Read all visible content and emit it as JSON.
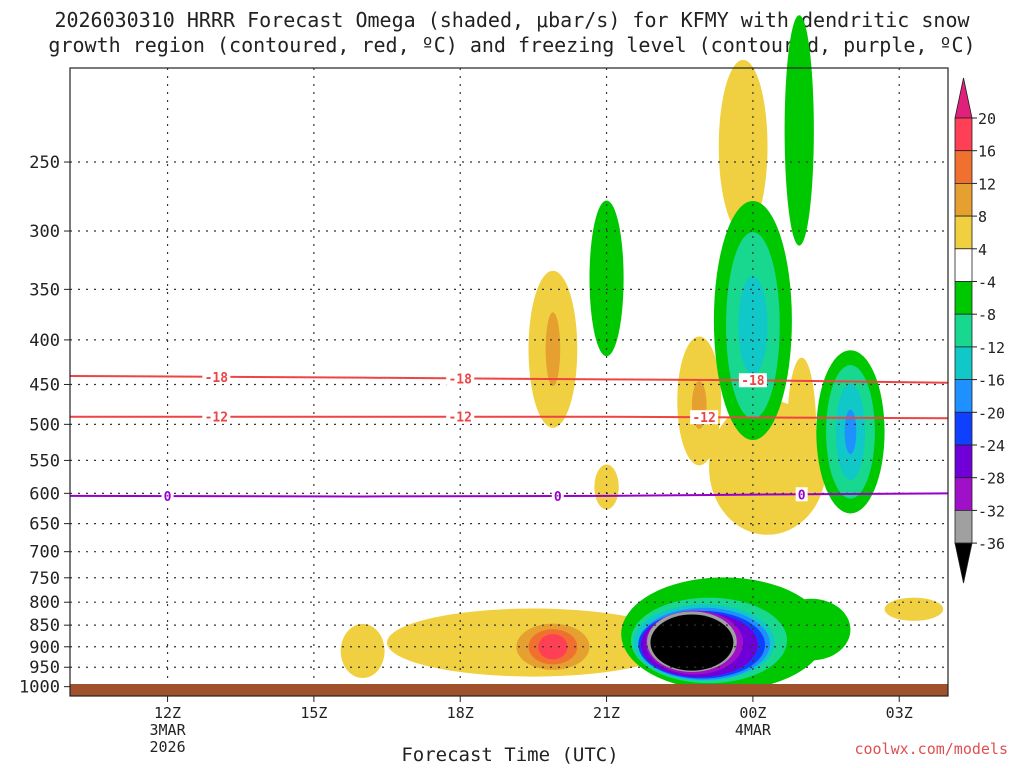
{
  "chart_data": {
    "type": "heatmap",
    "title_line1": "2026030310 HRRR Forecast Omega (shaded, μbar/s) for KFMY with dendritic snow",
    "title_line2": "growth region (contoured, red, ºC) and freezing level (contoured, purple, ºC)",
    "xlabel": "Forecast Time (UTC)",
    "x_range_hours": [
      -2,
      16
    ],
    "x_ticks": [
      {
        "hour": 0,
        "label": "12Z",
        "sub1": "3MAR",
        "sub2": "2026"
      },
      {
        "hour": 3,
        "label": "15Z",
        "sub1": "",
        "sub2": ""
      },
      {
        "hour": 6,
        "label": "18Z",
        "sub1": "",
        "sub2": ""
      },
      {
        "hour": 9,
        "label": "21Z",
        "sub1": "",
        "sub2": ""
      },
      {
        "hour": 12,
        "label": "00Z",
        "sub1": "4MAR",
        "sub2": ""
      },
      {
        "hour": 15,
        "label": "03Z",
        "sub1": "",
        "sub2": ""
      }
    ],
    "y_ticks_hpa": [
      "250",
      "300",
      "350",
      "400",
      "450",
      "500",
      "550",
      "600",
      "650",
      "700",
      "750",
      "800",
      "850",
      "900",
      "950",
      "1000"
    ],
    "y_range_hpa": [
      195,
      1025
    ],
    "colorbar": {
      "labels": [
        "20",
        "16",
        "12",
        "8",
        "4",
        "-4",
        "-8",
        "-12",
        "-16",
        "-20",
        "-24",
        "-28",
        "-32",
        "-36"
      ],
      "colors": [
        "#ff3f55",
        "#f07030",
        "#e6a030",
        "#f0d040",
        "#ffffff",
        "#00c800",
        "#18d890",
        "#10c8c8",
        "#1e90ff",
        "#1040ff",
        "#7000d8",
        "#a010c8",
        "#a0a0a0",
        "#000000"
      ],
      "top_arrow_color": "#e0207a",
      "bottom_arrow_color": "#000000"
    },
    "contours": [
      {
        "name": "dendritic -18",
        "value": -18,
        "label": "-18",
        "color": "#ee4444",
        "points": [
          [
            -2,
            440
          ],
          [
            4,
            442
          ],
          [
            9,
            444
          ],
          [
            12,
            445
          ],
          [
            16,
            448
          ]
        ],
        "label_hours": [
          1,
          6,
          12
        ]
      },
      {
        "name": "dendritic -12",
        "value": -12,
        "label": "-12",
        "color": "#ee4444",
        "points": [
          [
            -2,
            490
          ],
          [
            4,
            490
          ],
          [
            9,
            490
          ],
          [
            12,
            491
          ],
          [
            16,
            492
          ]
        ],
        "label_hours": [
          1,
          6,
          11
        ]
      },
      {
        "name": "freezing level",
        "value": 0,
        "label": "0",
        "color": "#9900cc",
        "points": [
          [
            -2,
            604
          ],
          [
            4,
            605
          ],
          [
            9,
            604
          ],
          [
            12,
            602
          ],
          [
            16,
            600
          ]
        ],
        "label_hours": [
          0,
          8,
          13
        ]
      }
    ],
    "omega_features": [
      {
        "value": 4,
        "hour": 4,
        "hpa": 910,
        "rh": 0.45,
        "rp": 65,
        "color": "#f0d040"
      },
      {
        "value": 4,
        "hour": 7.5,
        "hpa": 890,
        "rh": 3.0,
        "rp": 80,
        "color": "#f0d040"
      },
      {
        "value": 8,
        "hour": 7.9,
        "hpa": 900,
        "rh": 0.75,
        "rp": 55,
        "color": "#e6a030"
      },
      {
        "value": 12,
        "hour": 7.9,
        "hpa": 900,
        "rh": 0.5,
        "rp": 42,
        "color": "#f07030"
      },
      {
        "value": 16,
        "hour": 7.9,
        "hpa": 900,
        "rh": 0.3,
        "rp": 30,
        "color": "#ff3f55"
      },
      {
        "value": 4,
        "hour": 7.9,
        "hpa": 410,
        "rh": 0.5,
        "rp": 85,
        "color": "#f0d040"
      },
      {
        "value": 8,
        "hour": 7.9,
        "hpa": 410,
        "rh": 0.15,
        "rp": 40,
        "color": "#e6a030"
      },
      {
        "value": -4,
        "hour": 9.0,
        "hpa": 340,
        "rh": 0.35,
        "rp": 70,
        "color": "#00c800"
      },
      {
        "value": 4,
        "hour": 9.0,
        "hpa": 590,
        "rh": 0.25,
        "rp": 35,
        "color": "#f0d040"
      },
      {
        "value": 4,
        "hour": 10.9,
        "hpa": 470,
        "rh": 0.45,
        "rp": 80,
        "color": "#f0d040"
      },
      {
        "value": 8,
        "hour": 10.9,
        "hpa": 475,
        "rh": 0.15,
        "rp": 30,
        "color": "#e6a030"
      },
      {
        "value": 4,
        "hour": 12.3,
        "hpa": 560,
        "rh": 1.2,
        "rp": 100,
        "color": "#f0d040"
      },
      {
        "value": 4,
        "hour": 11.8,
        "hpa": 240,
        "rh": 0.5,
        "rp": 55,
        "color": "#f0d040"
      },
      {
        "value": 4,
        "hour": 13.0,
        "hpa": 510,
        "rh": 0.3,
        "rp": 100,
        "color": "#f0d040"
      },
      {
        "value": -4,
        "hour": 12.95,
        "hpa": 230,
        "rh": 0.3,
        "rp": 70,
        "color": "#00c800"
      },
      {
        "value": -4,
        "hour": 12.0,
        "hpa": 380,
        "rh": 0.8,
        "rp": 120,
        "color": "#00c800"
      },
      {
        "value": -8,
        "hour": 12.0,
        "hpa": 385,
        "rh": 0.55,
        "rp": 95,
        "color": "#18d890"
      },
      {
        "value": -12,
        "hour": 12.0,
        "hpa": 385,
        "rh": 0.3,
        "rp": 50,
        "color": "#10c8c8"
      },
      {
        "value": -4,
        "hour": 14.0,
        "hpa": 510,
        "rh": 0.7,
        "rp": 110,
        "color": "#00c800"
      },
      {
        "value": -8,
        "hour": 14.0,
        "hpa": 510,
        "rh": 0.5,
        "rp": 90,
        "color": "#18d890"
      },
      {
        "value": -12,
        "hour": 14.0,
        "hpa": 510,
        "rh": 0.3,
        "rp": 65,
        "color": "#10c8c8"
      },
      {
        "value": -16,
        "hour": 14.0,
        "hpa": 510,
        "rh": 0.12,
        "rp": 30,
        "color": "#1e90ff"
      },
      {
        "value": 4,
        "hour": 15.3,
        "hpa": 815,
        "rh": 0.6,
        "rp": 25,
        "color": "#f0d040"
      },
      {
        "value": -4,
        "hour": 11.4,
        "hpa": 870,
        "rh": 2.1,
        "rp": 130,
        "color": "#00c800"
      },
      {
        "value": -4,
        "hour": 13.2,
        "hpa": 860,
        "rh": 0.8,
        "rp": 70,
        "color": "#00c800"
      },
      {
        "value": -8,
        "hour": 11.1,
        "hpa": 885,
        "rh": 1.6,
        "rp": 100,
        "color": "#18d890"
      },
      {
        "value": -12,
        "hour": 11.0,
        "hpa": 890,
        "rh": 1.45,
        "rp": 90,
        "color": "#10c8c8"
      },
      {
        "value": -16,
        "hour": 11.0,
        "hpa": 893,
        "rh": 1.35,
        "rp": 85,
        "color": "#1e90ff"
      },
      {
        "value": -20,
        "hour": 10.95,
        "hpa": 895,
        "rh": 1.3,
        "rp": 80,
        "color": "#1040ff"
      },
      {
        "value": -24,
        "hour": 10.9,
        "hpa": 895,
        "rh": 1.2,
        "rp": 77,
        "color": "#7000d8"
      },
      {
        "value": -28,
        "hour": 10.8,
        "hpa": 890,
        "rh": 1.0,
        "rp": 75,
        "color": "#a010c8"
      },
      {
        "value": -32,
        "hour": 10.75,
        "hpa": 888,
        "rh": 0.92,
        "rp": 71,
        "color": "#a0a0a0"
      },
      {
        "value": -36,
        "hour": 10.75,
        "hpa": 890,
        "rh": 0.85,
        "rp": 66,
        "color": "#000000"
      }
    ]
  },
  "footer": {
    "brand": "coolwx.com/models"
  }
}
